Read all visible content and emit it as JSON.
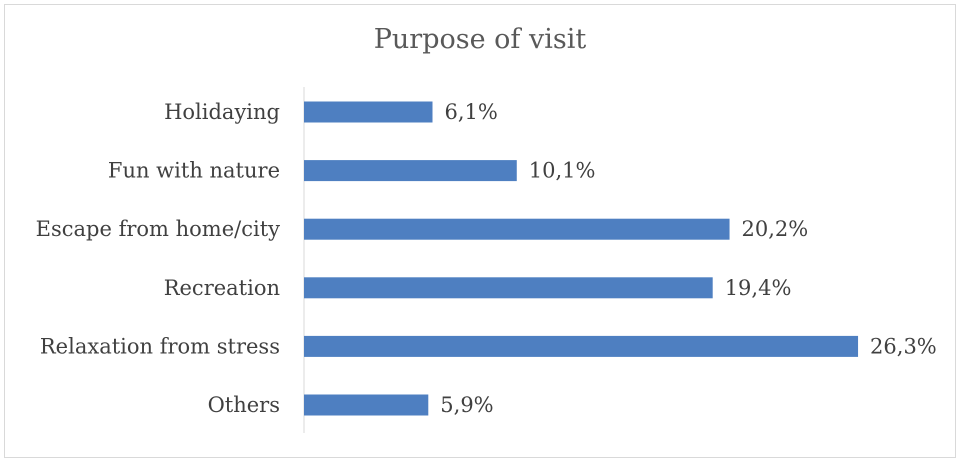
{
  "chart_data": {
    "type": "bar",
    "orientation": "horizontal",
    "title": "Purpose of visit",
    "categories": [
      "Holidaying",
      "Fun with nature",
      "Escape from home/city",
      "Recreation",
      "Relaxation from stress",
      "Others"
    ],
    "values": [
      6.1,
      10.1,
      20.2,
      19.4,
      26.3,
      5.9
    ],
    "value_labels": [
      "6,1%",
      "10,1%",
      "20,2%",
      "19,4%",
      "26,3%",
      "5,9%"
    ],
    "xlim": [
      0,
      30
    ],
    "grid": false,
    "legend": "none",
    "bar_color": "#4e7fc1"
  }
}
